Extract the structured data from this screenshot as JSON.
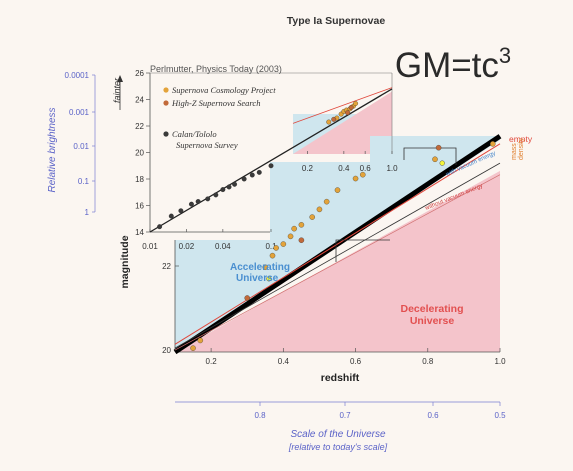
{
  "figure": {
    "title": "Type Ia Supernovae",
    "headline": "GM=tc",
    "headline_sup": "3",
    "citation": "Perlmutter, Physics Today (2003)",
    "colors": {
      "background": "#fbf6f1",
      "accelerating_region": "#cfe6ee",
      "decelerating_region": "#f4c4cb",
      "axis_blue": "#5b63c8",
      "scp_points": "#e3a33a",
      "highz_points": "#c26a3a",
      "calan_points": "#3a3a3a",
      "empty_line": "#e0483c"
    }
  },
  "chart_data": [
    {
      "type": "scatter",
      "name": "inset",
      "xlabel": "",
      "ylabel": "fainter",
      "xscale": "log",
      "xlim": [
        0.01,
        1.0
      ],
      "ylim": [
        14,
        26
      ],
      "x_ticks": [
        "0.01",
        "0.02",
        "0.04",
        "0.1",
        "0.2",
        "0.4",
        "0.6",
        "1.0"
      ],
      "x_tick_values": [
        0.01,
        0.02,
        0.04,
        0.1,
        0.2,
        0.4,
        0.6,
        1.0
      ],
      "y_ticks": [
        "14",
        "16",
        "18",
        "20",
        "22",
        "24",
        "26"
      ],
      "y_tick_values": [
        14,
        16,
        18,
        20,
        22,
        24,
        26
      ],
      "legend": [
        {
          "label": "Supernova Cosmology Project",
          "color": "#e3a33a"
        },
        {
          "label": "High-Z Supernova Search",
          "color": "#c26a3a"
        },
        {
          "label": "Calan/Tololo",
          "label2": "Supernova Survey",
          "color": "#3a3a3a"
        }
      ],
      "series": [
        {
          "points": [
            [
              0.012,
              14.4
            ],
            [
              0.015,
              15.2
            ],
            [
              0.018,
              15.6
            ],
            [
              0.022,
              16.1
            ],
            [
              0.025,
              16.3
            ],
            [
              0.03,
              16.5
            ],
            [
              0.035,
              16.8
            ],
            [
              0.04,
              17.2
            ],
            [
              0.045,
              17.4
            ],
            [
              0.05,
              17.6
            ],
            [
              0.06,
              18.0
            ],
            [
              0.07,
              18.3
            ],
            [
              0.08,
              18.5
            ],
            [
              0.1,
              19.0
            ]
          ]
        },
        {
          "points": [
            [
              0.3,
              22.3
            ],
            [
              0.35,
              22.6
            ],
            [
              0.38,
              22.9
            ],
            [
              0.4,
              23.1
            ],
            [
              0.42,
              23.2
            ],
            [
              0.45,
              23.3
            ],
            [
              0.48,
              23.5
            ],
            [
              0.5,
              23.7
            ]
          ]
        },
        {
          "points": [
            [
              0.33,
              22.5
            ],
            [
              0.43,
              23.0
            ],
            [
              0.46,
              23.4
            ]
          ]
        }
      ],
      "secondary_axes": {
        "label": "Relative brightness",
        "ticks": [
          "0.0001",
          "0.001",
          "0.01",
          "0.1",
          "1"
        ],
        "tick_values": [
          0.0001,
          0.001,
          0.01,
          0.1,
          1
        ]
      }
    },
    {
      "type": "scatter",
      "name": "main",
      "xlabel": "redshift",
      "ylabel": "magnitude",
      "xlim": [
        0.1,
        1.0
      ],
      "ylim": [
        20,
        25.5
      ],
      "x_ticks": [
        "0.2",
        "0.4",
        "0.6",
        "0.8",
        "1.0"
      ],
      "x_tick_values": [
        0.2,
        0.4,
        0.6,
        0.8,
        1.0
      ],
      "y_ticks": [
        "20",
        "22"
      ],
      "y_tick_values": [
        20,
        22
      ],
      "models": [
        {
          "label": "empty",
          "points": [
            [
              0.1,
              20.2
            ],
            [
              1.0,
              25.4
            ]
          ]
        },
        {
          "label": "with vacuum energy",
          "points": [
            [
              0.1,
              20.0
            ],
            [
              1.0,
              25.6
            ]
          ]
        },
        {
          "label": "without vacuum energy",
          "points": [
            [
              0.1,
              20.1
            ],
            [
              1.0,
              24.9
            ]
          ]
        }
      ],
      "regions": [
        "Accelerating",
        "Universe",
        "Decelerating",
        "Universe"
      ],
      "side_labels": [
        "mass",
        "density"
      ],
      "series": [
        {
          "points": [
            [
              0.15,
              20.1
            ],
            [
              0.17,
              20.3
            ],
            [
              0.35,
              22.2
            ],
            [
              0.37,
              22.5
            ],
            [
              0.38,
              22.7
            ],
            [
              0.4,
              22.8
            ],
            [
              0.42,
              23.0
            ],
            [
              0.43,
              23.2
            ],
            [
              0.45,
              23.3
            ],
            [
              0.48,
              23.5
            ],
            [
              0.5,
              23.7
            ],
            [
              0.52,
              23.9
            ],
            [
              0.55,
              24.2
            ],
            [
              0.6,
              24.5
            ],
            [
              0.62,
              24.6
            ],
            [
              0.82,
              25.0
            ],
            [
              0.98,
              25.4
            ]
          ]
        },
        {
          "points": [
            [
              0.3,
              21.4
            ],
            [
              0.45,
              22.9
            ],
            [
              0.83,
              25.3
            ]
          ]
        }
      ],
      "secondary_axis": {
        "label": "Scale of the Universe",
        "sublabel": "[relative to today's scale]",
        "ticks": [
          "0.8",
          "0.7",
          "0.6",
          "0.5"
        ],
        "tick_values": [
          0.8,
          0.7,
          0.6,
          0.5
        ]
      }
    }
  ]
}
